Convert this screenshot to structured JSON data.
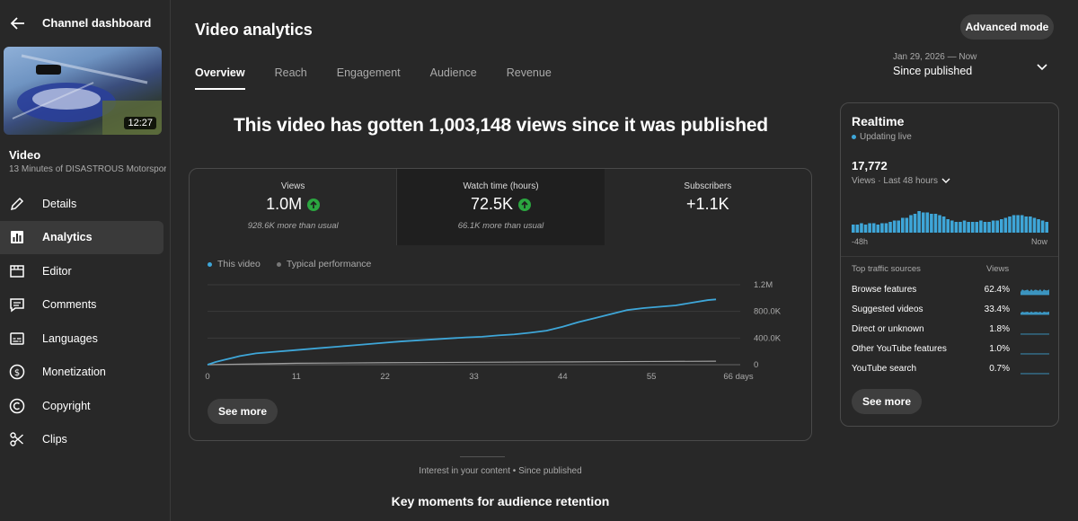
{
  "sidebar": {
    "title": "Channel dashboard",
    "thumbnail_duration": "12:27",
    "video_label": "Video",
    "video_name": "13 Minutes of DISASTROUS Motorsport...",
    "items": [
      {
        "label": "Details",
        "icon": "pencil-icon"
      },
      {
        "label": "Analytics",
        "icon": "analytics-icon",
        "active": true
      },
      {
        "label": "Editor",
        "icon": "editor-icon"
      },
      {
        "label": "Comments",
        "icon": "comments-icon"
      },
      {
        "label": "Languages",
        "icon": "subtitles-icon"
      },
      {
        "label": "Monetization",
        "icon": "dollar-icon"
      },
      {
        "label": "Copyright",
        "icon": "copyright-icon"
      },
      {
        "label": "Clips",
        "icon": "scissors-icon"
      }
    ]
  },
  "header": {
    "title": "Video analytics",
    "tabs": [
      "Overview",
      "Reach",
      "Engagement",
      "Audience",
      "Revenue"
    ],
    "advanced_label": "Advanced mode",
    "date_range": "Jan 29, 2026 — Now",
    "date_value": "Since published"
  },
  "headline": "This video has gotten 1,003,148 views since it was published",
  "metrics": [
    {
      "label": "Views",
      "value": "1.0M",
      "sub": "928.6K more than usual",
      "trend": "up"
    },
    {
      "label": "Watch time (hours)",
      "value": "72.5K",
      "sub": "66.1K more than usual",
      "trend": "up"
    },
    {
      "label": "Subscribers",
      "value": "+1.1K",
      "sub": "",
      "trend": ""
    }
  ],
  "legend": {
    "this_video": "This video",
    "typical": "Typical performance"
  },
  "chart_data": {
    "type": "line",
    "x_unit": "days",
    "x_ticks": [
      "0",
      "11",
      "22",
      "33",
      "44",
      "55",
      "66 days"
    ],
    "y_ticks": [
      "0",
      "400.0K",
      "800.0K",
      "1.2M"
    ],
    "ylim": [
      0,
      1200000
    ],
    "xlim": [
      0,
      66
    ],
    "series": [
      {
        "name": "This video",
        "color": "#3ea6d8",
        "x": [
          0,
          1,
          2,
          3,
          4,
          5,
          6,
          8,
          10,
          12,
          14,
          16,
          18,
          20,
          22,
          24,
          26,
          28,
          30,
          32,
          34,
          36,
          38,
          40,
          42,
          44,
          46,
          48,
          50,
          52,
          54,
          56,
          58,
          60,
          62,
          63
        ],
        "y": [
          0,
          40000,
          70000,
          100000,
          130000,
          150000,
          170000,
          190000,
          210000,
          230000,
          250000,
          270000,
          290000,
          310000,
          330000,
          350000,
          365000,
          380000,
          395000,
          410000,
          420000,
          440000,
          455000,
          480000,
          510000,
          570000,
          640000,
          700000,
          760000,
          820000,
          850000,
          870000,
          890000,
          930000,
          970000,
          980000
        ]
      },
      {
        "name": "Typical performance",
        "color": "#9e9e9e",
        "x": [
          0,
          11,
          22,
          33,
          44,
          55,
          63
        ],
        "y": [
          0,
          22000,
          30000,
          36000,
          42000,
          48000,
          52000
        ]
      }
    ]
  },
  "see_more_label": "See more",
  "realtime": {
    "title": "Realtime",
    "live": "Updating live",
    "count": "17,772",
    "period": "Views · Last 48 hours",
    "axis_left": "-48h",
    "axis_right": "Now",
    "bars": [
      6,
      6,
      7,
      6,
      7,
      7,
      6,
      7,
      7,
      8,
      9,
      9,
      11,
      11,
      13,
      14,
      16,
      15,
      15,
      14,
      14,
      13,
      12,
      10,
      9,
      8,
      8,
      9,
      8,
      8,
      8,
      9,
      8,
      8,
      9,
      9,
      10,
      11,
      12,
      13,
      13,
      13,
      12,
      12,
      11,
      10,
      9,
      8
    ],
    "traffic_header": "Top traffic sources",
    "traffic_views_header": "Views",
    "sources": [
      {
        "name": "Browse features",
        "pct": "62.4%",
        "level": 0.624
      },
      {
        "name": "Suggested videos",
        "pct": "33.4%",
        "level": 0.334
      },
      {
        "name": "Direct or unknown",
        "pct": "1.8%",
        "level": 0.018
      },
      {
        "name": "Other YouTube features",
        "pct": "1.0%",
        "level": 0.01
      },
      {
        "name": "YouTube search",
        "pct": "0.7%",
        "level": 0.007
      }
    ]
  },
  "retention": {
    "subtitle": "Interest in your content • Since published",
    "title": "Key moments for audience retention"
  },
  "colors": {
    "accent": "#3ea6d8",
    "up": "#2ba640",
    "bg": "#282828"
  }
}
